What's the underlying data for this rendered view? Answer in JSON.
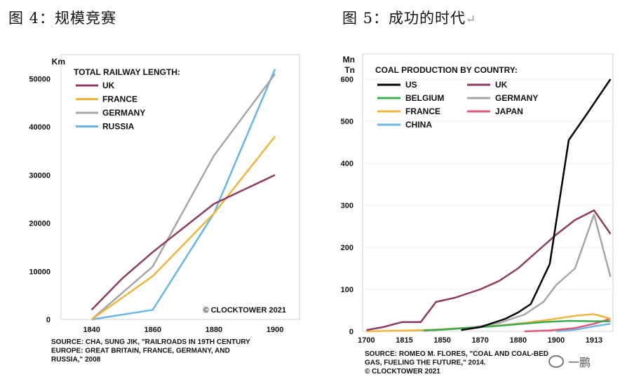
{
  "headings": {
    "left": "图 4：规模竞赛",
    "right": "图 5：成功的时代",
    "right_mark": "↵"
  },
  "chart_data": [
    {
      "type": "line",
      "title": "TOTAL RAILWAY LENGTH:",
      "ylabel": "Km",
      "xlabel": "",
      "x": [
        1840,
        1860,
        1880,
        1900
      ],
      "x_ticks": [
        "1840",
        "1860",
        "1880",
        "1900"
      ],
      "xlim": [
        1830,
        1908
      ],
      "ylim": [
        0,
        55000
      ],
      "y_ticks": [
        "0",
        "10000",
        "20000",
        "30000",
        "40000",
        "50000"
      ],
      "y_tick_values": [
        0,
        10000,
        20000,
        30000,
        40000,
        50000
      ],
      "legend_position": "top-left",
      "series": [
        {
          "name": "UK",
          "color": "#8b3a62",
          "x": [
            1840,
            1850,
            1860,
            1870,
            1880,
            1890,
            1900
          ],
          "values": [
            2000,
            8500,
            14000,
            19000,
            24000,
            27000,
            30000
          ]
        },
        {
          "name": "FRANCE",
          "color": "#f0b43c",
          "x": [
            1840,
            1860,
            1880,
            1900
          ],
          "values": [
            0,
            9000,
            22000,
            38000
          ]
        },
        {
          "name": "GERMANY",
          "color": "#a6a6a6",
          "x": [
            1840,
            1860,
            1880,
            1900
          ],
          "values": [
            0,
            11000,
            34000,
            51000
          ]
        },
        {
          "name": "RUSSIA",
          "color": "#6ab4e6",
          "x": [
            1840,
            1860,
            1880,
            1900
          ],
          "values": [
            0,
            2000,
            22000,
            52000
          ]
        }
      ],
      "annotation": "© CLOCKTOWER 2021",
      "source": [
        "SOURCE: CHA, SUNG JIK, \"RAILROADS IN 19TH CENTURY",
        "EUROPE: GREAT BRITAIN, FRANCE, GERMANY, AND",
        "RUSSIA,\" 2008"
      ]
    },
    {
      "type": "line",
      "title": "COAL PRODUCTION BY COUNTRY:",
      "ylabel": "Mn Tn",
      "ylabel_lines": [
        "Mn",
        "Tn"
      ],
      "xlabel": "",
      "x_ticks": [
        "1700",
        "1815",
        "1850",
        "1870",
        "1880",
        "1900",
        "1913"
      ],
      "x_tick_positions": [
        1700,
        1730,
        1760,
        1790,
        1820,
        1850,
        1880
      ],
      "xlim": [
        1697,
        1895
      ],
      "ylim": [
        0,
        660
      ],
      "y_ticks": [
        "0",
        "100",
        "200",
        "300",
        "400",
        "500",
        "600"
      ],
      "y_tick_values": [
        0,
        100,
        200,
        300,
        400,
        500,
        600
      ],
      "legend_position": "top-left",
      "series": [
        {
          "name": "US",
          "color": "#000000",
          "x": [
            1775,
            1790,
            1800,
            1810,
            1820,
            1830,
            1845,
            1860,
            1875,
            1893
          ],
          "values": [
            3,
            10,
            20,
            30,
            45,
            65,
            160,
            455,
            520,
            600
          ]
        },
        {
          "name": "UK",
          "color": "#8b3a62",
          "x": [
            1700,
            1713,
            1728,
            1743,
            1755,
            1770,
            1790,
            1805,
            1820,
            1835,
            1850,
            1865,
            1880,
            1893
          ],
          "values": [
            3,
            10,
            22,
            22,
            70,
            80,
            100,
            120,
            150,
            190,
            230,
            265,
            288,
            232
          ]
        },
        {
          "name": "BELGIUM",
          "color": "#3cab4e",
          "x": [
            1745,
            1760,
            1780,
            1800,
            1820,
            1840,
            1860,
            1880,
            1893
          ],
          "values": [
            2,
            4,
            8,
            12,
            17,
            22,
            25,
            24,
            24
          ]
        },
        {
          "name": "GERMANY",
          "color": "#a6a6a6",
          "x": [
            1745,
            1765,
            1785,
            1805,
            1825,
            1840,
            1850,
            1865,
            1880,
            1893
          ],
          "values": [
            2,
            5,
            10,
            20,
            40,
            70,
            110,
            150,
            278,
            130
          ]
        },
        {
          "name": "FRANCE",
          "color": "#f0b43c",
          "x": [
            1700,
            1745,
            1765,
            1785,
            1805,
            1825,
            1845,
            1865,
            1880,
            1893
          ],
          "values": [
            0,
            3,
            6,
            10,
            14,
            20,
            28,
            37,
            41,
            30
          ]
        },
        {
          "name": "JAPAN",
          "color": "#e05878",
          "x": [
            1825,
            1845,
            1865,
            1880,
            1893
          ],
          "values": [
            0,
            2,
            8,
            18,
            30
          ]
        },
        {
          "name": "CHINA",
          "color": "#6ab4e6",
          "x": [
            1850,
            1865,
            1880,
            1893
          ],
          "values": [
            0,
            4,
            12,
            18
          ]
        }
      ],
      "source": [
        "SOURCE: ROMEO M. FLORES, \"COAL AND COAL-BED",
        "GAS, FUELING THE FUTURE,\" 2014.",
        "© CLOCKTOWER 2021"
      ]
    }
  ],
  "watermark": {
    "text": "一鹏",
    "icon": "wechat-bubble-icon"
  }
}
